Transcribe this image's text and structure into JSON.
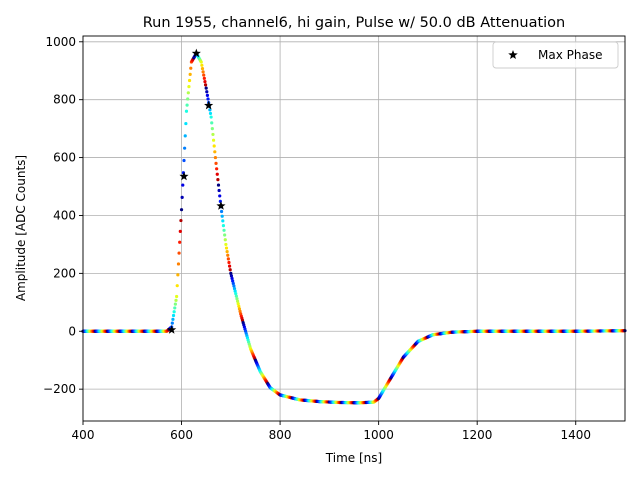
{
  "chart_data": {
    "type": "scatter",
    "title": "Run 1955, channel6, hi gain, Pulse w/ 50.0 dB Attenuation",
    "xlabel": "Time [ns]",
    "ylabel": "Amplitude [ADC Counts]",
    "xlim": [
      400,
      1500
    ],
    "ylim": [
      -310,
      1020
    ],
    "xticks": [
      400,
      600,
      800,
      1000,
      1200,
      1400
    ],
    "xtick_labels": [
      "400",
      "600",
      "800",
      "1000",
      "1200",
      "1400"
    ],
    "yticks": [
      -200,
      0,
      200,
      400,
      600,
      800,
      1000
    ],
    "ytick_labels": [
      "−200",
      "0",
      "200",
      "400",
      "600",
      "800",
      "1000"
    ],
    "grid": true,
    "legend_position": "upper-right",
    "legend_label": "Max Phase",
    "pulse_profile": {
      "x": [
        400,
        570,
        580,
        590,
        600,
        610,
        620,
        630,
        640,
        650,
        660,
        670,
        680,
        690,
        700,
        720,
        740,
        760,
        780,
        800,
        840,
        880,
        920,
        960,
        990,
        1000,
        1020,
        1050,
        1080,
        1110,
        1150,
        1200,
        1300,
        1400,
        1500
      ],
      "y": [
        0,
        0,
        15,
        120,
        420,
        760,
        930,
        960,
        930,
        840,
        740,
        580,
        430,
        300,
        200,
        60,
        -60,
        -140,
        -195,
        -220,
        -237,
        -243,
        -246,
        -247,
        -245,
        -232,
        -175,
        -90,
        -35,
        -12,
        -3,
        0,
        0,
        0,
        2
      ]
    },
    "max_phase": {
      "name": "Max Phase",
      "points": [
        {
          "x": 580,
          "y": 5
        },
        {
          "x": 605,
          "y": 535
        },
        {
          "x": 630,
          "y": 960
        },
        {
          "x": 655,
          "y": 780
        },
        {
          "x": 680,
          "y": 433
        }
      ]
    }
  }
}
